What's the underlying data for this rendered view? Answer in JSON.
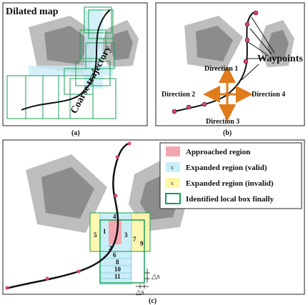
{
  "panel_a": {
    "title": "Dilated map",
    "trajectory_label": "Coarse trajectory",
    "caption": "(a)"
  },
  "panel_b": {
    "waypoints_label": "Waypoints",
    "directions": [
      "Direction 1",
      "Direction 2",
      "Direction 3",
      "Direction 4"
    ],
    "caption": "(b)"
  },
  "panel_c": {
    "legend": [
      {
        "label": "Approached region",
        "color": "#f4a6b0"
      },
      {
        "label": "Expanded region (valid)",
        "color": "#c9eef7",
        "marker": "x"
      },
      {
        "label": "Expanded region (invalid)",
        "color": "#fff6a8",
        "marker": "x"
      },
      {
        "label": "Identified local box finally",
        "color": "#1a9e55"
      }
    ],
    "box_numbers": [
      "1",
      "2",
      "3",
      "4",
      "5",
      "6",
      "7",
      "8",
      "9",
      "10",
      "11"
    ],
    "delta_label": "△s",
    "caption": "(c)"
  },
  "colors": {
    "obstacle_dilated": "#bdbdbd",
    "obstacle_core": "#8c8c8c",
    "trajectory": "#111111",
    "waypoint": "#e0407a",
    "arrow": "#e07a1a",
    "box_green": "#1a9e55"
  }
}
